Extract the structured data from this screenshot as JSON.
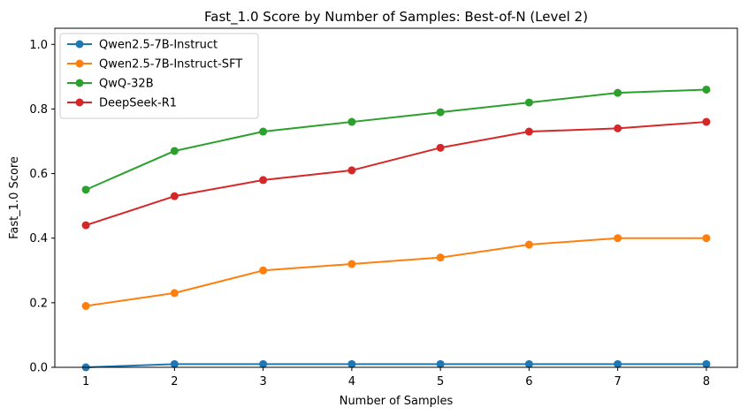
{
  "chart_data": {
    "type": "line",
    "title": "Fast_1.0 Score by Number of Samples: Best-of-N (Level 2)",
    "xlabel": "Number of Samples",
    "ylabel": "Fast_1.0 Score",
    "x": [
      1,
      2,
      3,
      4,
      5,
      6,
      7,
      8
    ],
    "x_tick_labels": [
      "1",
      "2",
      "3",
      "4",
      "5",
      "6",
      "7",
      "8"
    ],
    "y_tick_labels": [
      "0.0",
      "0.2",
      "0.4",
      "0.6",
      "0.8",
      "1.0"
    ],
    "y_ticks": [
      0.0,
      0.2,
      0.4,
      0.6,
      0.8,
      1.0
    ],
    "xlim": [
      0.65,
      8.35
    ],
    "ylim": [
      0.0,
      1.05
    ],
    "grid": false,
    "legend_position": "upper-left",
    "series": [
      {
        "name": "Qwen2.5-7B-Instruct",
        "color": "#1f77b4",
        "values": [
          0.0,
          0.01,
          0.01,
          0.01,
          0.01,
          0.01,
          0.01,
          0.01
        ]
      },
      {
        "name": "Qwen2.5-7B-Instruct-SFT",
        "color": "#ff7f0e",
        "values": [
          0.19,
          0.23,
          0.3,
          0.32,
          0.34,
          0.38,
          0.4,
          0.4
        ]
      },
      {
        "name": "QwQ-32B",
        "color": "#2ca02c",
        "values": [
          0.55,
          0.67,
          0.73,
          0.76,
          0.79,
          0.82,
          0.85,
          0.86
        ]
      },
      {
        "name": "DeepSeek-R1",
        "color": "#d62728",
        "values": [
          0.44,
          0.53,
          0.58,
          0.61,
          0.68,
          0.73,
          0.74,
          0.76
        ]
      }
    ]
  }
}
